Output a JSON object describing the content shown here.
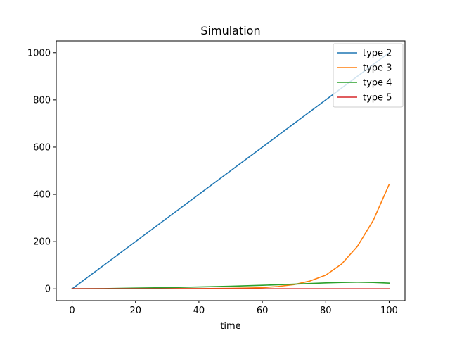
{
  "chart_data": {
    "type": "line",
    "title": "Simulation",
    "xlabel": "time",
    "ylabel": "",
    "xlim": [
      -5,
      105
    ],
    "ylim": [
      -50,
      1050
    ],
    "xticks": [
      0,
      20,
      40,
      60,
      80,
      100
    ],
    "yticks": [
      0,
      200,
      400,
      600,
      800,
      1000
    ],
    "grid": false,
    "legend_position": "top-right",
    "series": [
      {
        "name": "type 2",
        "color": "#1f77b4",
        "x": [
          0,
          100
        ],
        "y": [
          0,
          1000
        ]
      },
      {
        "name": "type 3",
        "color": "#ff7f0e",
        "x": [
          0,
          10,
          20,
          30,
          40,
          50,
          55,
          60,
          65,
          70,
          75,
          80,
          85,
          90,
          95,
          100
        ],
        "y": [
          0,
          0,
          0.5,
          1,
          1,
          2,
          3,
          5,
          10,
          18,
          33,
          58,
          105,
          180,
          290,
          442
        ]
      },
      {
        "name": "type 4",
        "color": "#2ca02c",
        "x": [
          0,
          10,
          20,
          30,
          40,
          50,
          60,
          70,
          80,
          85,
          90,
          95,
          100
        ],
        "y": [
          0,
          1,
          3,
          5,
          8,
          11,
          15,
          20,
          25,
          27,
          28,
          27,
          24
        ]
      },
      {
        "name": "type 5",
        "color": "#d62728",
        "x": [
          0,
          100
        ],
        "y": [
          0,
          0
        ]
      }
    ]
  }
}
